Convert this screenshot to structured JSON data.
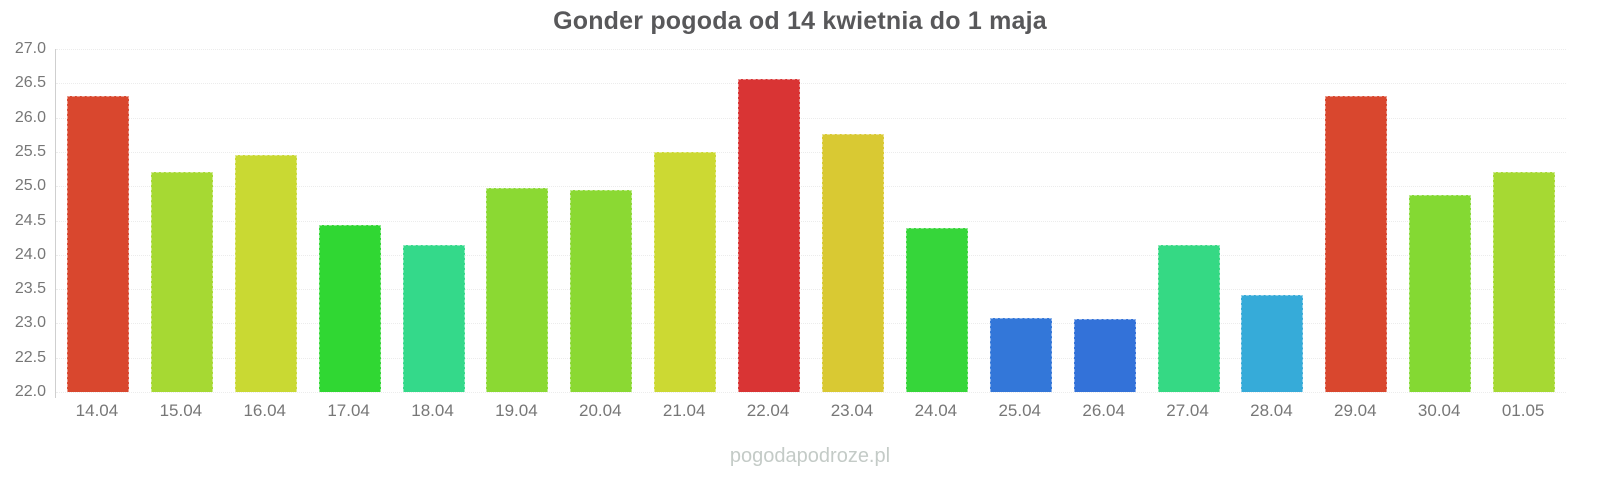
{
  "title": "Gonder pogoda od 14 kwietnia do 1 maja",
  "watermark": "pogodapodroze.pl",
  "colors": {
    "title_text": "#58585a",
    "axis_line": "#cfcfcf",
    "gridline": "#ececec",
    "tick_text": "#777777",
    "watermark_text": "#c4cbc7",
    "background": "#ffffff"
  },
  "chart_data": {
    "type": "bar",
    "title": "Gonder pogoda od 14 kwietnia do 1 maja",
    "xlabel": "",
    "ylabel": "",
    "categories": [
      "14.04",
      "15.04",
      "16.04",
      "17.04",
      "18.04",
      "19.04",
      "20.04",
      "21.04",
      "22.04",
      "23.04",
      "24.04",
      "25.04",
      "26.04",
      "27.04",
      "28.04",
      "29.04",
      "30.04",
      "01.05"
    ],
    "values": [
      26.32,
      25.2,
      25.45,
      24.43,
      24.15,
      24.97,
      24.94,
      25.5,
      26.56,
      25.76,
      24.39,
      23.08,
      23.06,
      24.14,
      23.42,
      26.31,
      24.87,
      25.2
    ],
    "bar_colors": [
      "#d9472e",
      "#a6d933",
      "#c9d933",
      "#30d733",
      "#34d98a",
      "#8bd933",
      "#8bd933",
      "#ccd933",
      "#d93434",
      "#d9c933",
      "#36d63a",
      "#3377d9",
      "#3372d9",
      "#35d984",
      "#36abd9",
      "#d9472e",
      "#84d933",
      "#a6d933"
    ],
    "ylim": [
      22.0,
      27.0
    ],
    "ytick_step": 0.5,
    "yticks": [
      27.0,
      26.5,
      26.0,
      25.5,
      25.0,
      24.5,
      24.0,
      23.5,
      23.0,
      22.5,
      22.0
    ],
    "grid": "horizontal-dotted",
    "legend": "none"
  }
}
